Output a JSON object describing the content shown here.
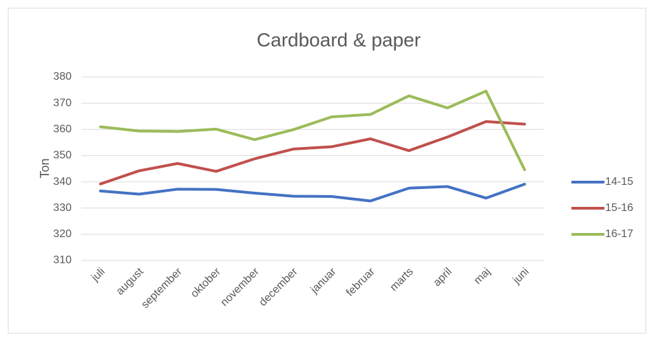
{
  "chart_data": {
    "type": "line",
    "title": "Cardboard & paper",
    "y_label": "Ton",
    "categories": [
      "juli",
      "august",
      "september",
      "oktober",
      "november",
      "december",
      "januar",
      "februar",
      "marts",
      "april",
      "maj",
      "juni"
    ],
    "series": [
      {
        "name": "14-15",
        "color": "#4472c4",
        "values": [
          336.5,
          335.3,
          337.2,
          337.1,
          335.7,
          334.5,
          334.4,
          332.7,
          337.6,
          338.2,
          333.8,
          339.1
        ]
      },
      {
        "name": "15-16",
        "color": "#c0504d",
        "values": [
          339.2,
          344.2,
          347,
          344,
          348.8,
          352.5,
          353.4,
          356.4,
          351.9,
          357.1,
          363,
          362
        ]
      },
      {
        "name": "16-17",
        "color": "#9bbb59",
        "values": [
          361,
          359.4,
          359.2,
          360.1,
          356.1,
          359.9,
          364.8,
          365.7,
          372.8,
          368.2,
          374.6,
          344.6
        ]
      }
    ],
    "ylim": [
      310,
      380
    ],
    "yticks": [
      310,
      320,
      330,
      340,
      350,
      360,
      370,
      380
    ],
    "grid": true,
    "legend": "right"
  }
}
